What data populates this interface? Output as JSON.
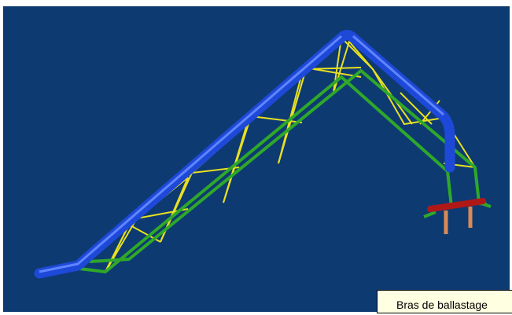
{
  "tooltip": {
    "text": "Bras de ballastage"
  }
}
